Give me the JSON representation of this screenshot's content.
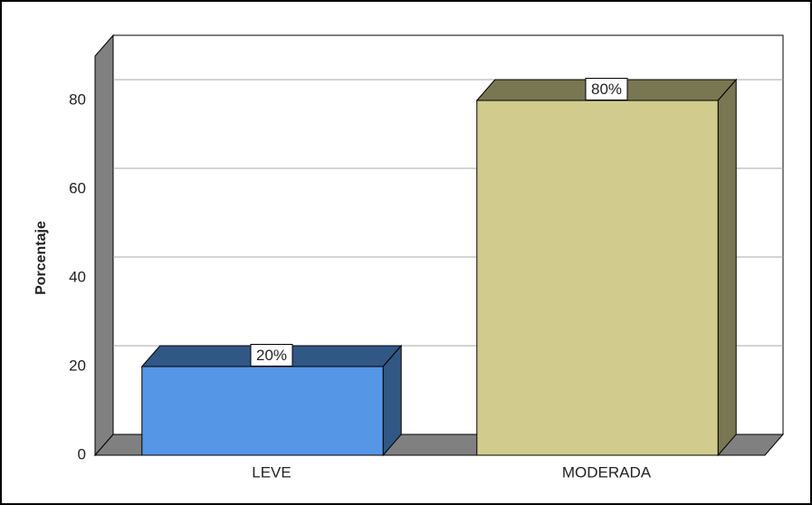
{
  "chart_data": {
    "type": "bar3d",
    "ylabel": "Porcentaje",
    "categories": [
      "LEVE",
      "MODERADA"
    ],
    "values": [
      20,
      80
    ],
    "value_labels": [
      "20%",
      "80%"
    ],
    "colors": [
      "#5596e6",
      "#d1cc8e"
    ],
    "ylim": [
      0,
      90
    ],
    "yticks": [
      0,
      20,
      40,
      60,
      80
    ],
    "grid": true
  }
}
